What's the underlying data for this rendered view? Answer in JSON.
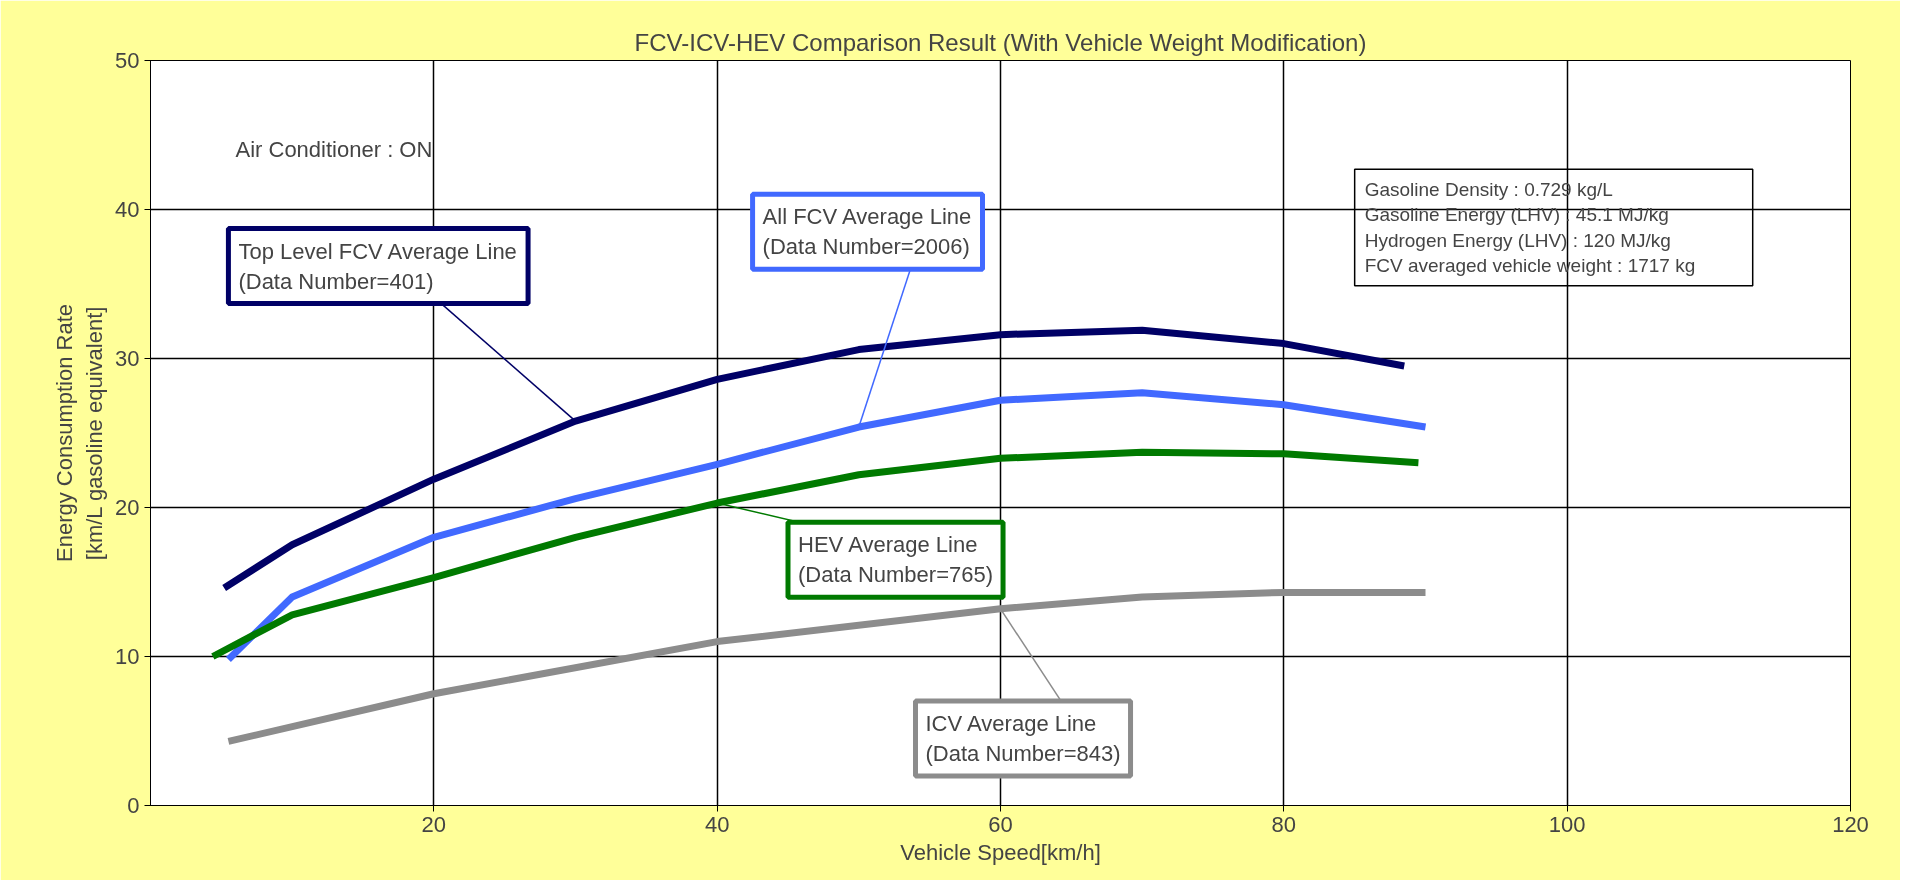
{
  "chart_data": {
    "type": "line",
    "title": "FCV-ICV-HEV Comparison Result (With Vehicle Weight Modification)",
    "xlabel": "Vehicle Speed[km/h]",
    "ylabel": "Energy Consumption Rate\n[km/L gasoline equivalent]",
    "xlim": [
      0,
      120
    ],
    "xticks": [
      20,
      40,
      60,
      80,
      100,
      120
    ],
    "ylim": [
      0,
      50
    ],
    "yticks": [
      0,
      10,
      20,
      30,
      40,
      50
    ],
    "grid": true,
    "marker": "none",
    "line_style": "solid",
    "series": [
      {
        "name": "Top Level FCV Average Line\n(Data Number=401)",
        "color": "#000066",
        "x": [
          5.2,
          10,
          20,
          30,
          40,
          50,
          60,
          70,
          80,
          88.5
        ],
        "values": [
          14.6,
          17.5,
          21.9,
          25.8,
          28.6,
          30.6,
          31.6,
          31.9,
          31.0,
          29.5
        ]
      },
      {
        "name": "All FCV Average Line\n(Data Number=2006)",
        "color": "#4169ff",
        "x": [
          5.5,
          10,
          20,
          30,
          40,
          50,
          60,
          70,
          80,
          90
        ],
        "values": [
          9.8,
          14.0,
          18.0,
          20.6,
          22.9,
          25.4,
          27.2,
          27.7,
          26.9,
          25.4
        ]
      },
      {
        "name": "HEV Average Line\n(Data Number=765)",
        "color": "#007a00",
        "x": [
          4.4,
          10,
          20,
          30,
          40,
          50,
          60,
          70,
          80,
          89.5
        ],
        "values": [
          10.0,
          12.8,
          15.3,
          18.0,
          20.3,
          22.2,
          23.3,
          23.7,
          23.6,
          23.0
        ]
      },
      {
        "name": "ICV Average Line\n(Data Number=843)",
        "color": "#8c8c8c",
        "x": [
          5.5,
          20,
          40,
          60,
          70,
          80,
          90
        ],
        "values": [
          4.3,
          7.5,
          11.0,
          13.2,
          14.0,
          14.3,
          14.3
        ]
      }
    ],
    "annotations": [
      "Air Conditioner : ON",
      "Gasoline Density                       : 0.729 kg/L",
      "Gasoline Energy (LHV)               : 45.1 MJ/kg",
      "Hydrogen Energy (LHV)              : 120 MJ/kg",
      "FCV averaged vehicle weight : 1717 kg"
    ]
  }
}
